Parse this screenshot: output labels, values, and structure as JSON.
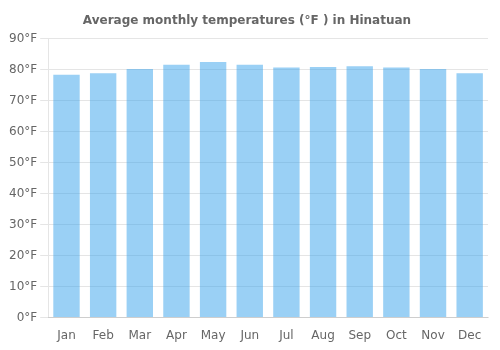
{
  "chart_data": {
    "type": "bar",
    "title": "Average monthly temperatures (°F ) in Hinatuan",
    "categories": [
      "Jan",
      "Feb",
      "Mar",
      "Apr",
      "May",
      "Jun",
      "Jul",
      "Aug",
      "Sep",
      "Oct",
      "Nov",
      "Dec"
    ],
    "values": [
      78.3,
      78.8,
      80.1,
      81.5,
      82.4,
      81.5,
      80.6,
      80.8,
      81.0,
      80.6,
      80.1,
      78.8
    ],
    "ylim": [
      0,
      90
    ],
    "yticks": [
      {
        "value": 0,
        "label": "0°F"
      },
      {
        "value": 10,
        "label": "10°F"
      },
      {
        "value": 20,
        "label": "20°F"
      },
      {
        "value": 30,
        "label": "30°F"
      },
      {
        "value": 40,
        "label": "40°F"
      },
      {
        "value": 50,
        "label": "50°F"
      },
      {
        "value": 60,
        "label": "60°F"
      },
      {
        "value": 70,
        "label": "70°F"
      },
      {
        "value": 80,
        "label": "80°F"
      },
      {
        "value": 90,
        "label": "90°F"
      }
    ],
    "grid": true
  }
}
